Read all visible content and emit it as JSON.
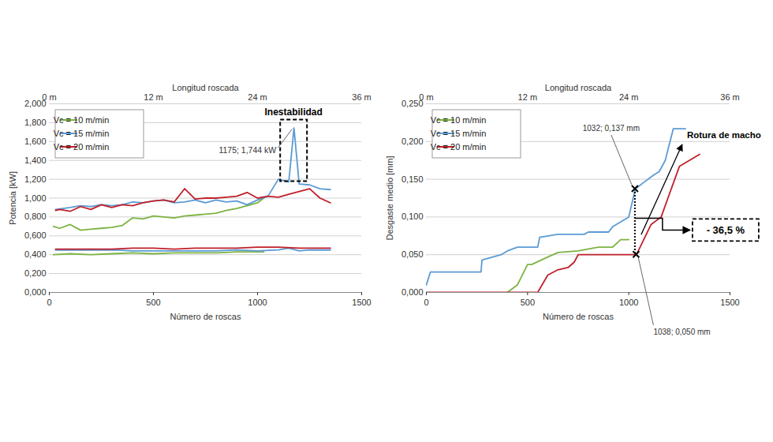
{
  "chart_data": [
    {
      "type": "line",
      "x_label": "Número de roscas",
      "y_label": "Potencia [kW]",
      "x2_label": "Longitud roscada",
      "xlim": [
        0,
        1500
      ],
      "xticks": [
        0,
        500,
        1000,
        1500
      ],
      "x2lim": [
        0,
        36
      ],
      "x2ticks": [
        {
          "value": 0,
          "label": "0 m"
        },
        {
          "value": 12,
          "label": "12 m"
        },
        {
          "value": 24,
          "label": "24 m"
        },
        {
          "value": 36,
          "label": "36 m"
        }
      ],
      "ylim": [
        0,
        2
      ],
      "yticks": [
        {
          "value": 0,
          "label": "0,000"
        },
        {
          "value": 0.2,
          "label": "0,200"
        },
        {
          "value": 0.4,
          "label": "0,400"
        },
        {
          "value": 0.6,
          "label": "0,600"
        },
        {
          "value": 0.8,
          "label": "0,800"
        },
        {
          "value": 1,
          "label": "1,000"
        },
        {
          "value": 1.2,
          "label": "1,200"
        },
        {
          "value": 1.4,
          "label": "1,400"
        },
        {
          "value": 1.6,
          "label": "1,600"
        },
        {
          "value": 1.8,
          "label": "1,800"
        },
        {
          "value": 2,
          "label": "2,000"
        }
      ],
      "grid": true,
      "legend": "top-left",
      "series": [
        {
          "name": "Vc = 10 m/min",
          "color": "#7cb342",
          "x": [
            20,
            50,
            100,
            150,
            200,
            250,
            300,
            350,
            400,
            450,
            500,
            550,
            600,
            650,
            700,
            750,
            800,
            850,
            900,
            950,
            1000,
            1030
          ],
          "values": [
            0.7,
            0.68,
            0.72,
            0.66,
            0.67,
            0.68,
            0.69,
            0.71,
            0.79,
            0.78,
            0.81,
            0.8,
            0.79,
            0.81,
            0.82,
            0.83,
            0.84,
            0.87,
            0.89,
            0.92,
            0.95,
            1.0
          ]
        },
        {
          "name": "Vc = 10 m/min",
          "color": "#7cb342",
          "x": [
            20,
            100,
            200,
            300,
            400,
            500,
            600,
            700,
            800,
            900,
            1000,
            1030
          ],
          "values": [
            0.4,
            0.41,
            0.4,
            0.41,
            0.42,
            0.41,
            0.42,
            0.42,
            0.42,
            0.43,
            0.43,
            0.43
          ]
        },
        {
          "name": "Vc = 15 m/min",
          "color": "#5b9bd5",
          "x": [
            30,
            100,
            150,
            200,
            250,
            300,
            350,
            400,
            450,
            500,
            550,
            600,
            650,
            700,
            750,
            800,
            850,
            900,
            950,
            1000,
            1050,
            1100,
            1150,
            1175,
            1200,
            1250,
            1300,
            1350
          ],
          "values": [
            0.88,
            0.9,
            0.92,
            0.91,
            0.93,
            0.92,
            0.93,
            0.96,
            0.95,
            0.97,
            0.98,
            0.95,
            0.96,
            0.98,
            0.95,
            0.98,
            0.96,
            0.97,
            0.93,
            0.98,
            1.02,
            1.2,
            1.17,
            1.744,
            1.15,
            1.14,
            1.1,
            1.09
          ]
        },
        {
          "name": "Vc = 15 m/min",
          "color": "#5b9bd5",
          "x": [
            30,
            100,
            200,
            300,
            400,
            500,
            600,
            700,
            800,
            900,
            1000,
            1100,
            1150,
            1200,
            1250,
            1300,
            1350
          ],
          "values": [
            0.45,
            0.45,
            0.45,
            0.45,
            0.44,
            0.44,
            0.44,
            0.44,
            0.44,
            0.45,
            0.44,
            0.45,
            0.47,
            0.44,
            0.45,
            0.45,
            0.45
          ]
        },
        {
          "name": "Vc = 20 m/min",
          "color": "#c0202a",
          "x": [
            30,
            50,
            100,
            150,
            200,
            250,
            300,
            350,
            400,
            450,
            500,
            550,
            600,
            650,
            700,
            750,
            800,
            850,
            900,
            950,
            1000,
            1050,
            1100,
            1150,
            1200,
            1250,
            1300,
            1350
          ],
          "values": [
            0.87,
            0.88,
            0.86,
            0.91,
            0.88,
            0.93,
            0.9,
            0.93,
            0.92,
            0.95,
            0.97,
            0.98,
            0.96,
            1.1,
            0.99,
            1.0,
            1.0,
            1.01,
            1.02,
            1.06,
            1.0,
            1.02,
            1.01,
            1.04,
            1.07,
            1.1,
            1.0,
            0.95
          ]
        },
        {
          "name": "Vc = 20 m/min",
          "color": "#c0202a",
          "x": [
            30,
            100,
            200,
            300,
            400,
            500,
            600,
            700,
            800,
            900,
            1000,
            1100,
            1200,
            1300,
            1350
          ],
          "values": [
            0.46,
            0.46,
            0.46,
            0.46,
            0.47,
            0.47,
            0.46,
            0.47,
            0.47,
            0.47,
            0.48,
            0.48,
            0.47,
            0.47,
            0.47
          ]
        }
      ],
      "annotations": [
        {
          "text": "Inestabilidad"
        },
        {
          "text": "1175; 1,744 kW",
          "x": 1175,
          "y": 1.744
        }
      ]
    },
    {
      "type": "line",
      "x_label": "Número de roscas",
      "y_label": "Desgaste medio [mm]",
      "x2_label": "Longitud roscada",
      "xlim": [
        0,
        1500
      ],
      "xticks": [
        0,
        500,
        1000,
        1500
      ],
      "x2lim": [
        0,
        36
      ],
      "x2ticks": [
        {
          "value": 0,
          "label": "0 m"
        },
        {
          "value": 12,
          "label": "12 m"
        },
        {
          "value": 24,
          "label": "24 m"
        },
        {
          "value": 36,
          "label": "36 m"
        }
      ],
      "ylim": [
        0,
        0.25
      ],
      "yticks": [
        {
          "value": 0,
          "label": "0,000"
        },
        {
          "value": 0.05,
          "label": "0,050"
        },
        {
          "value": 0.1,
          "label": "0,100"
        },
        {
          "value": 0.15,
          "label": "0,150"
        },
        {
          "value": 0.2,
          "label": "0,200"
        },
        {
          "value": 0.25,
          "label": "0,250"
        }
      ],
      "grid": true,
      "legend": "top-left",
      "series": [
        {
          "name": "Vc = 10 m/min",
          "color": "#7cb342",
          "x": [
            400,
            450,
            500,
            520,
            600,
            650,
            750,
            850,
            920,
            960,
            1000
          ],
          "values": [
            0,
            0.01,
            0.037,
            0.037,
            0.047,
            0.053,
            0.055,
            0.06,
            0.06,
            0.07,
            0.07
          ]
        },
        {
          "name": "Vc = 15 m/min",
          "color": "#5b9bd5",
          "x": [
            0,
            20,
            270,
            275,
            370,
            400,
            450,
            550,
            560,
            650,
            780,
            800,
            900,
            920,
            1000,
            1032,
            1070,
            1120,
            1150,
            1180,
            1220,
            1280
          ],
          "values": [
            0.01,
            0.027,
            0.027,
            0.043,
            0.05,
            0.055,
            0.06,
            0.06,
            0.073,
            0.077,
            0.077,
            0.08,
            0.08,
            0.087,
            0.1,
            0.137,
            0.145,
            0.155,
            0.16,
            0.175,
            0.217,
            0.217
          ]
        },
        {
          "name": "Vc = 20 m/min",
          "color": "#c0202a",
          "x": [
            0,
            550,
            600,
            650,
            700,
            730,
            750,
            1038,
            1110,
            1160,
            1200,
            1250,
            1350
          ],
          "values": [
            0,
            0,
            0.023,
            0.03,
            0.033,
            0.04,
            0.05,
            0.05,
            0.09,
            0.1,
            0.13,
            0.167,
            0.183
          ]
        }
      ],
      "annotations": [
        {
          "text": "1032; 0,137 mm",
          "x": 1032,
          "y": 0.137,
          "marker": "x"
        },
        {
          "text": "1038; 0,050 mm",
          "x": 1038,
          "y": 0.05,
          "marker": "x"
        },
        {
          "text": "Rotura de macho"
        },
        {
          "text": "- 36,5 %"
        }
      ]
    }
  ]
}
